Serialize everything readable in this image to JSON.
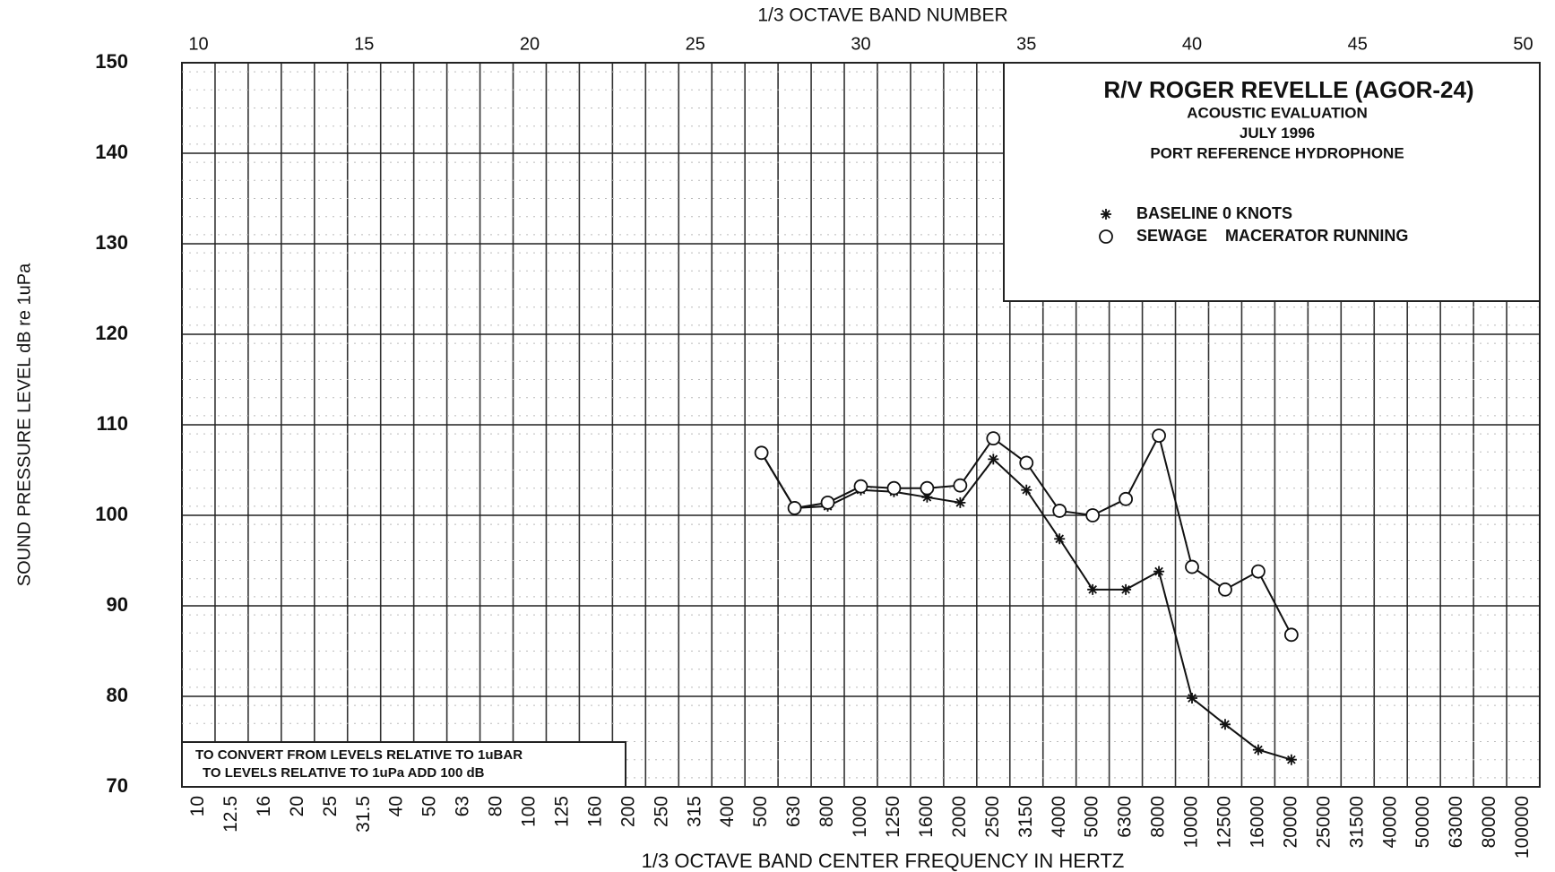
{
  "chart_data": {
    "type": "line",
    "title": "R/V ROGER REVELLE (AGOR-24)",
    "subtitle": [
      "ACOUSTIC EVALUATION",
      "JULY 1996",
      "PORT REFERENCE HYDROPHONE"
    ],
    "x_label": "1/3 OCTAVE BAND CENTER FREQUENCY IN HERTZ",
    "y_label": "SOUND PRESSURE LEVEL dB re 1uPa",
    "annotation": [
      "TO CONVERT FROM LEVELS RELATIVE TO 1uBAR",
      "TO LEVELS RELATIVE TO 1uPa ADD 100 dB"
    ],
    "categories": [
      "10",
      "12.5",
      "16",
      "20",
      "25",
      "31.5",
      "40",
      "50",
      "63",
      "80",
      "100",
      "125",
      "160",
      "200",
      "250",
      "315",
      "400",
      "500",
      "630",
      "800",
      "1000",
      "1250",
      "1600",
      "2000",
      "2500",
      "3150",
      "4000",
      "5000",
      "6300",
      "8000",
      "10000",
      "12500",
      "16000",
      "20000",
      "25000",
      "31500",
      "40000",
      "50000",
      "63000",
      "80000",
      "100000"
    ],
    "top_axis": {
      "label": "1/3 OCTAVE BAND NUMBER",
      "lim": [
        9.5,
        50.5
      ],
      "ticks": [
        10,
        15,
        20,
        25,
        30,
        35,
        40,
        45,
        50
      ]
    },
    "series": [
      {
        "name": "BASELINE 0 KNOTS",
        "marker": "asterisk",
        "color": "#111111",
        "values": [
          null,
          null,
          null,
          null,
          null,
          null,
          null,
          null,
          null,
          null,
          null,
          null,
          null,
          null,
          null,
          null,
          null,
          106.9,
          100.8,
          101.0,
          102.8,
          102.6,
          102.0,
          101.4,
          106.2,
          102.8,
          97.4,
          91.8,
          91.8,
          93.8,
          79.8,
          76.9,
          74.1,
          73.0,
          null,
          null,
          null,
          null,
          null,
          null,
          null
        ]
      },
      {
        "name": "SEWAGE    MACERATOR RUNNING",
        "marker": "circle",
        "color": "#111111",
        "values": [
          null,
          null,
          null,
          null,
          null,
          null,
          null,
          null,
          null,
          null,
          null,
          null,
          null,
          null,
          null,
          null,
          null,
          106.9,
          100.8,
          101.4,
          103.2,
          103.0,
          103.0,
          103.3,
          108.5,
          105.8,
          100.5,
          100.0,
          101.8,
          108.8,
          94.3,
          91.8,
          93.8,
          86.8,
          null,
          null,
          null,
          null,
          null,
          null,
          null
        ]
      }
    ],
    "ylim": [
      70,
      150
    ],
    "yticks": [
      70,
      80,
      90,
      100,
      110,
      120,
      130,
      140,
      150
    ],
    "grid": true
  }
}
